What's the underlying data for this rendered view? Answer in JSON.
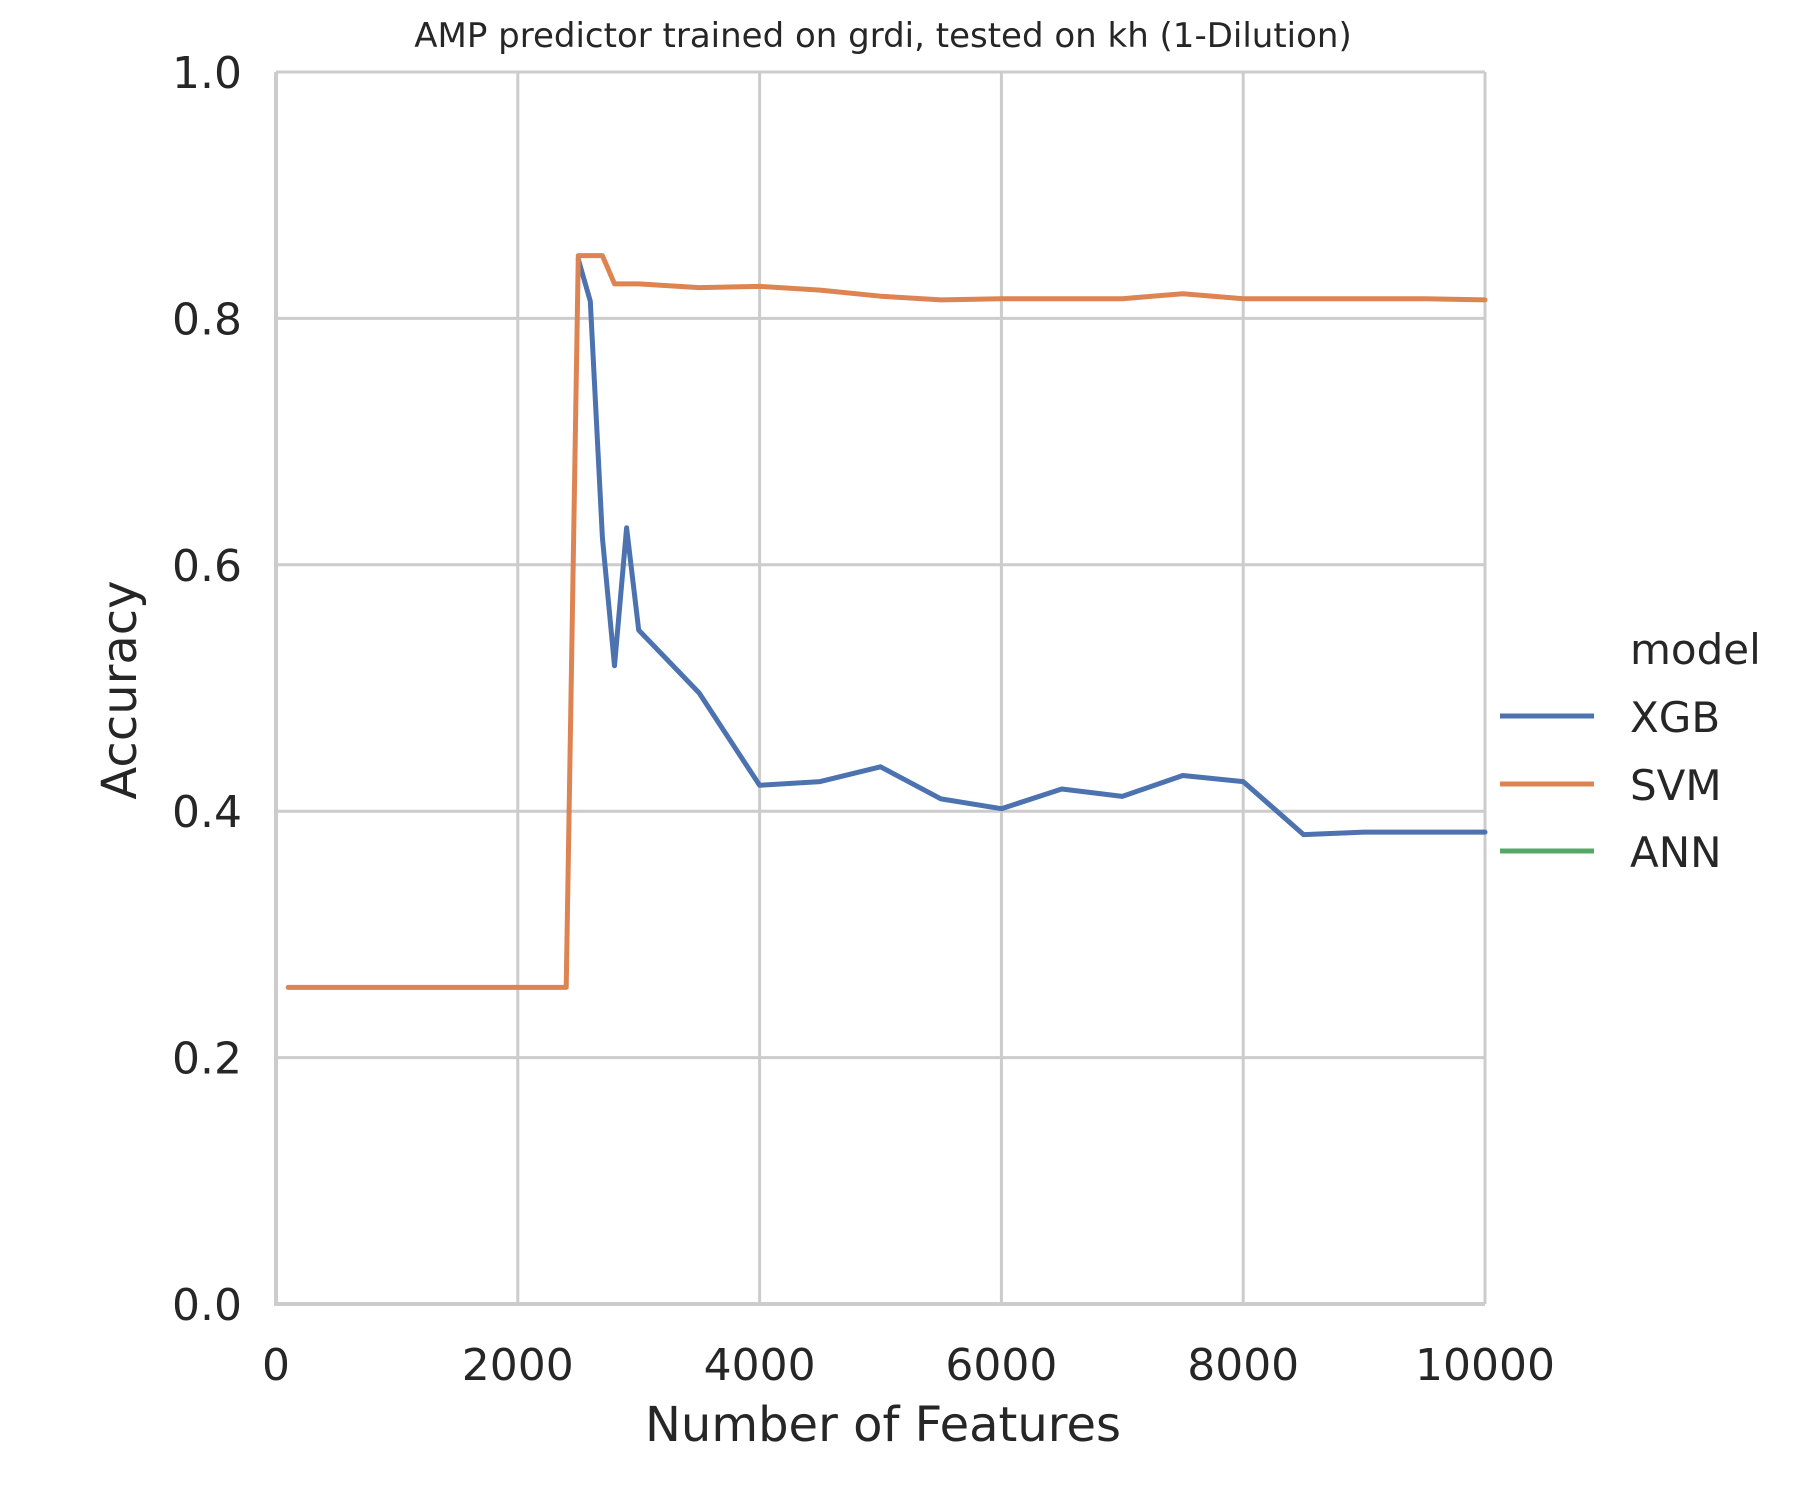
{
  "chart_data": {
    "type": "line",
    "title": "AMP predictor trained on grdi, tested on kh (1-Dilution)",
    "xlabel": "Number of Features",
    "ylabel": "Accuracy",
    "xlim": [
      0,
      10000
    ],
    "ylim": [
      0.0,
      1.0
    ],
    "x_ticks": [
      "0",
      "2000",
      "4000",
      "6000",
      "8000",
      "10000"
    ],
    "y_ticks": [
      "0.0",
      "0.2",
      "0.4",
      "0.6",
      "0.8",
      "1.0"
    ],
    "grid": true,
    "legend": {
      "title": "model",
      "placement": "right",
      "entries": [
        "XGB",
        "SVM",
        "ANN"
      ]
    },
    "series": [
      {
        "name": "XGB",
        "color": "#4c72b0",
        "x": [
          2500,
          2600,
          2700,
          2800,
          2900,
          3000,
          3500,
          4000,
          4500,
          5000,
          5500,
          6000,
          6500,
          7000,
          7500,
          8000,
          8500,
          9000,
          9500,
          10000
        ],
        "y": [
          0.848,
          0.814,
          0.622,
          0.518,
          0.63,
          0.547,
          0.496,
          0.421,
          0.424,
          0.436,
          0.41,
          0.402,
          0.418,
          0.412,
          0.429,
          0.424,
          0.381,
          0.383,
          0.383,
          0.383
        ]
      },
      {
        "name": "SVM",
        "color": "#dd8452",
        "x": [
          100,
          500,
          1000,
          1500,
          2000,
          2400,
          2500,
          2600,
          2700,
          2800,
          2900,
          3000,
          3500,
          4000,
          4500,
          5000,
          5500,
          6000,
          6500,
          7000,
          7500,
          8000,
          8500,
          9000,
          9500,
          10000
        ],
        "y": [
          0.257,
          0.257,
          0.257,
          0.257,
          0.257,
          0.257,
          0.851,
          0.851,
          0.851,
          0.828,
          0.828,
          0.828,
          0.825,
          0.826,
          0.823,
          0.818,
          0.815,
          0.816,
          0.816,
          0.816,
          0.82,
          0.816,
          0.816,
          0.816,
          0.816,
          0.815
        ]
      },
      {
        "name": "ANN",
        "color": "#55a868",
        "x": [],
        "y": []
      }
    ]
  }
}
